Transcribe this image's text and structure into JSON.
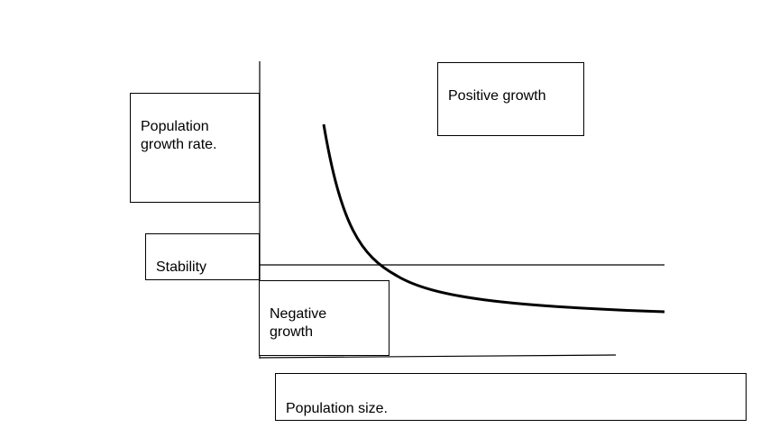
{
  "diagram": {
    "labels": {
      "y_axis": "Population\ngrowth rate.",
      "positive": "Positive growth",
      "stability": "Stability",
      "negative": "Negative\ngrowth",
      "x_axis": "Population size."
    },
    "line_color": "#000000"
  }
}
